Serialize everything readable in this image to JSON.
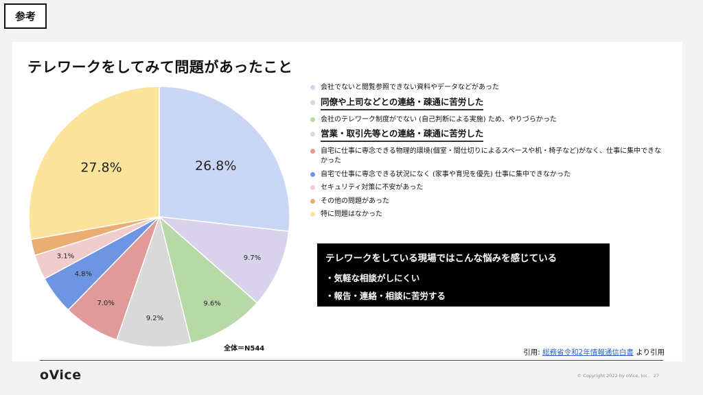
{
  "header": {
    "tag": "参考"
  },
  "slide": {
    "title": "テレワークをしてみて問題があったこと",
    "total": "全体＝N544",
    "citation": {
      "prefix": "引用: ",
      "link": "総務省令和2年情報通信白書",
      "suffix": " より引用"
    }
  },
  "legend": [
    {
      "label": "会社でないと閲覧参照できない資料やデータなどがあった",
      "color": "#c9d7f4",
      "emphasis": false
    },
    {
      "label": "同僚や上司などとの連絡・疎通に苦労した",
      "color": "#d8d3ea",
      "emphasis": true
    },
    {
      "label": "会社のテレワーク制度がでない (自己判断による実施) ため、やりづらかった",
      "color": "#b7d9a8",
      "emphasis": false
    },
    {
      "label": "営業・取引先等との連絡・疎通に苦労した",
      "color": "#d9d9d9",
      "emphasis": true
    },
    {
      "label": "自宅に仕事に専念できる物理的環境(個室・間仕切りによるスペースや机・椅子など)がなく、仕事に集中できなかった",
      "color": "#e09a9a",
      "emphasis": false
    },
    {
      "label": "自宅で仕事に専念できる状況になく (家事や育児を優先) 仕事に集中できなかった",
      "color": "#6d95e2",
      "emphasis": false
    },
    {
      "label": "セキュリティ対策に不安があった",
      "color": "#f0cccc",
      "emphasis": false
    },
    {
      "label": "その他の問題があった",
      "color": "#e9ad72",
      "emphasis": false
    },
    {
      "label": "特に問題はなかった",
      "color": "#fbe39b",
      "emphasis": false
    }
  ],
  "callout": {
    "heading": "テレワークをしている現場ではこんな悩みを感じている",
    "bullets": [
      "・気軽な相談がしにくい",
      "・報告・連絡・相談に苦労する"
    ]
  },
  "footer": {
    "logo": "oVice",
    "copyright": "© Copyright 2022 by oVice, Inc.　27"
  },
  "chart_data": {
    "type": "pie",
    "categories": [
      "会社でないと閲覧参照できない資料やデータなどがあった",
      "同僚や上司などとの連絡・疎通に苦労した",
      "会社のテレワーク制度がでない (自己判断による実施) ため、やりづらかった",
      "営業・取引先等との連絡・疎通に苦労した",
      "自宅に仕事に専念できる物理的環境(個室・間仕切りによるスペースや机・椅子など)がなく、仕事に集中できなかった",
      "自宅で仕事に専念できる状況になく (家事や育児を優先) 仕事に集中できなかった",
      "セキュリティ対策に不安があった",
      "その他の問題があった",
      "特に問題はなかった"
    ],
    "values": [
      26.8,
      9.7,
      9.6,
      9.2,
      7.0,
      4.8,
      3.1,
      2.0,
      27.8
    ],
    "labels": [
      "26.8%",
      "9.7%",
      "9.6%",
      "9.2%",
      "7.0%",
      "4.8%",
      "3.1%",
      "",
      "27.8%"
    ],
    "colors": [
      "#c9d7f4",
      "#d8d3ea",
      "#b7d9a8",
      "#d9d9d9",
      "#e09a9a",
      "#6d95e2",
      "#f0cccc",
      "#e9ad72",
      "#fbe39b"
    ],
    "title": "テレワークをしてみて問題があったこと",
    "legend_position": "right"
  }
}
